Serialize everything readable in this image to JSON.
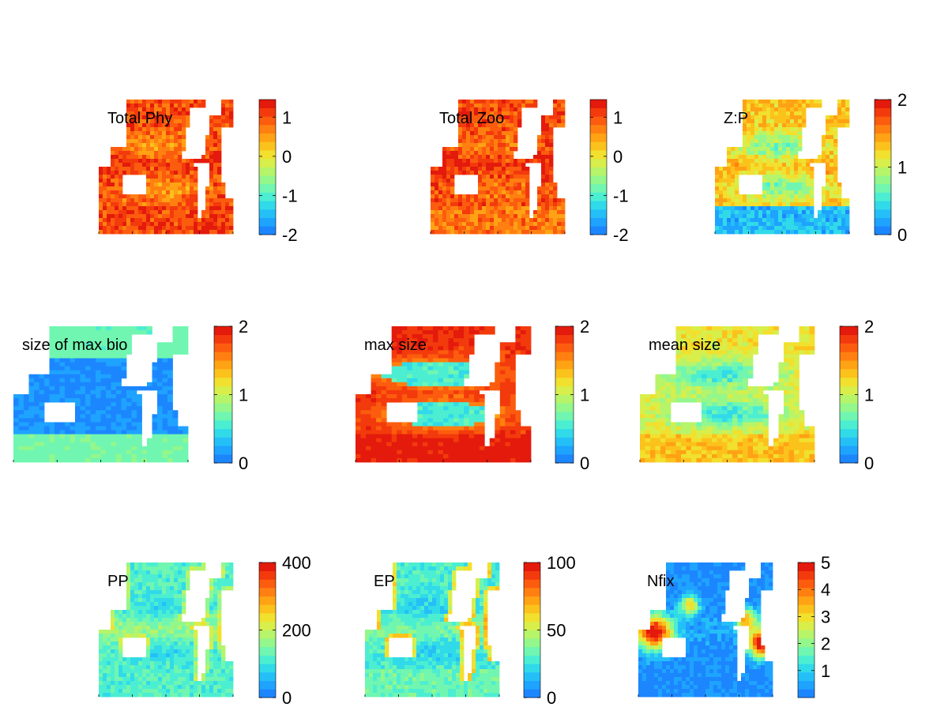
{
  "figure": {
    "type": "heatmap-grid",
    "rows": 3,
    "cols": 3
  },
  "chart_data": [
    {
      "type": "heatmap",
      "title": "Total Phy",
      "colorbar": {
        "min": -2,
        "max": 1.45,
        "ticks": [
          -2,
          -1,
          0,
          1
        ]
      },
      "map_style": {
        "base": 1.0,
        "tropical_bump": 0.2,
        "gyre_dip": -0.5,
        "gyre_sharp": false,
        "southern": 0.1,
        "noise": 0.35,
        "coast_strength": 0
      }
    },
    {
      "type": "heatmap",
      "title": "Total Zoo",
      "colorbar": {
        "min": -2,
        "max": 1.45,
        "ticks": [
          -2,
          -1,
          0,
          1
        ]
      },
      "map_style": {
        "base": 1.05,
        "tropical_bump": 0.2,
        "gyre_dip": -0.35,
        "gyre_sharp": false,
        "southern": -0.3,
        "noise": 0.35,
        "coast_strength": 0
      }
    },
    {
      "type": "heatmap",
      "title": "Z:P",
      "colorbar": {
        "min": 0,
        "max": 2,
        "ticks": [
          0,
          1,
          2
        ]
      },
      "map_style": {
        "base": 1.3,
        "tropical_bump": 0.1,
        "gyre_dip": -0.6,
        "gyre_sharp": false,
        "southern": -1.0,
        "noise": 0.2,
        "coast_strength": 0
      }
    },
    {
      "type": "heatmap",
      "title": "size of max bio",
      "colorbar": {
        "min": 0,
        "max": 2,
        "ticks": [
          0,
          1,
          2
        ]
      },
      "map_style": {
        "base": 0.12,
        "tropical_bump": 0.0,
        "gyre_dip": 0.0,
        "gyre_sharp": false,
        "southern": 0.6,
        "northern": 0.55,
        "noise": 0.05,
        "coast_strength": 0
      }
    },
    {
      "type": "heatmap",
      "title": "max size",
      "colorbar": {
        "min": 0,
        "max": 2,
        "ticks": [
          0,
          1,
          2
        ]
      },
      "map_style": {
        "base": 1.85,
        "tropical_bump": 0.0,
        "gyre_dip": -1.3,
        "gyre_sharp": true,
        "southern": 0.1,
        "noise": 0.1,
        "coast_strength": 0
      }
    },
    {
      "type": "heatmap",
      "title": "mean size",
      "colorbar": {
        "min": 0,
        "max": 2,
        "ticks": [
          0,
          1,
          2
        ]
      },
      "map_style": {
        "base": 1.15,
        "tropical_bump": -0.1,
        "gyre_dip": -0.6,
        "gyre_sharp": false,
        "southern": 0.15,
        "noise": 0.15,
        "coast_strength": 0
      }
    },
    {
      "type": "heatmap",
      "title": "PP",
      "colorbar": {
        "min": 0,
        "max": 400,
        "ticks": [
          0,
          200,
          400
        ]
      },
      "map_style": {
        "base": 120,
        "tropical_bump": 50,
        "gyre_dip": -40,
        "gyre_sharp": false,
        "southern": 0,
        "noise": 25,
        "coast_strength": 60
      }
    },
    {
      "type": "heatmap",
      "title": "EP",
      "colorbar": {
        "min": 0,
        "max": 100,
        "ticks": [
          0,
          50,
          100
        ]
      },
      "map_style": {
        "base": 28,
        "tropical_bump": 10,
        "gyre_dip": -10,
        "gyre_sharp": false,
        "southern": 5,
        "noise": 6,
        "coast_strength": 30
      }
    },
    {
      "type": "heatmap",
      "title": "Nfix",
      "colorbar": {
        "min": 0,
        "max": 5,
        "ticks": [
          1,
          2,
          3,
          4,
          5
        ]
      },
      "map_style": {
        "base": 0.2,
        "tropical_bump": 0.3,
        "gyre_dip": 0,
        "gyre_sharp": false,
        "southern": 0,
        "noise": 0.3,
        "coast_strength": 0,
        "hotspots": true
      }
    }
  ],
  "colors": {
    "background": "#ffffff",
    "land": "#ffffff",
    "text": "#000000"
  }
}
